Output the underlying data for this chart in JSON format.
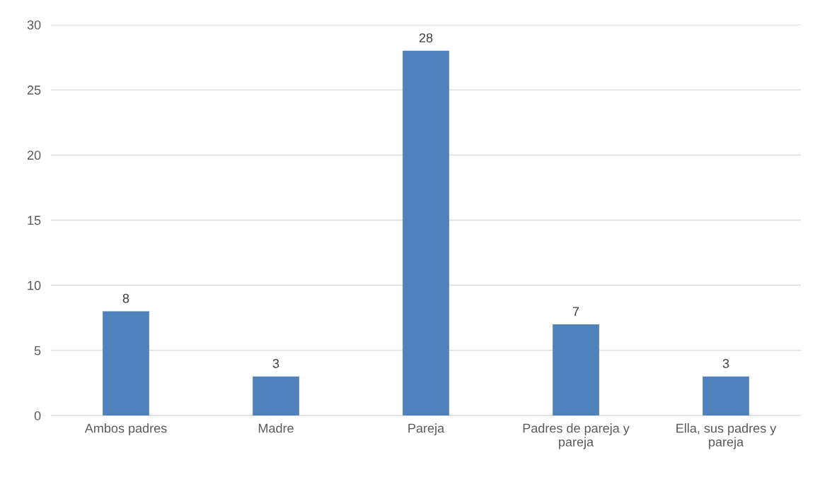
{
  "chart_data": {
    "type": "bar",
    "categories": [
      "Ambos padres",
      "Madre",
      "Pareja",
      "Padres de pareja y pareja",
      "Ella, sus padres y pareja"
    ],
    "values": [
      8,
      3,
      28,
      7,
      3
    ],
    "color": "#4f81bd",
    "ylim": [
      0,
      30
    ],
    "yticks": [
      0,
      5,
      10,
      15,
      20,
      25,
      30
    ],
    "grid": "y",
    "data_labels": true
  }
}
